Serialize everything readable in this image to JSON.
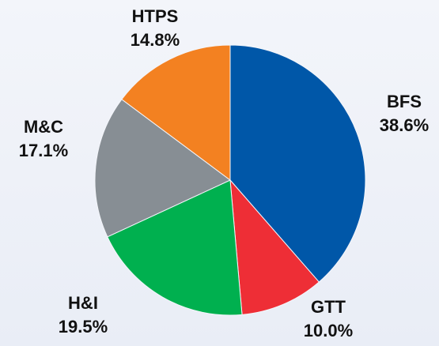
{
  "chart_data": {
    "type": "pie",
    "categories": [
      "BFS",
      "GTT",
      "H&I",
      "M&C",
      "HTPS"
    ],
    "values": [
      38.6,
      10.0,
      19.5,
      17.1,
      14.8
    ],
    "value_labels": [
      "38.6%",
      "10.0%",
      "19.5%",
      "17.1%",
      "14.8%"
    ],
    "colors": [
      "#0057a8",
      "#ee2e36",
      "#00b04f",
      "#878e94",
      "#f38121"
    ]
  }
}
